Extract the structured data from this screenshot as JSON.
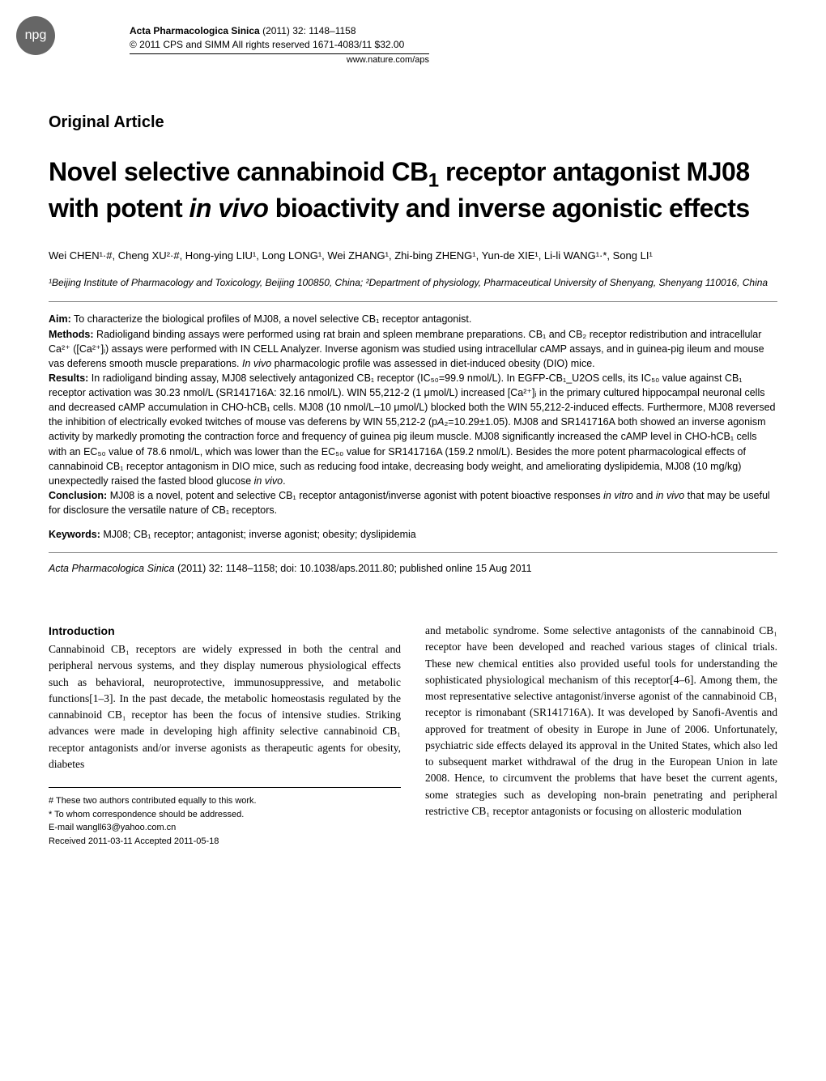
{
  "badge": "npg",
  "header": {
    "journal": "Acta Pharmacologica Sinica",
    "details": "(2011) 32: 1148–1158",
    "copyright": "© 2011 CPS and SIMM   All rights reserved 1671-4083/11  $32.00",
    "website": "www.nature.com/aps"
  },
  "article_type": "Original Article",
  "title_parts": {
    "p1": "Novel selective cannabinoid CB",
    "sub1": "1",
    "p2": " receptor antagonist MJ08 with potent ",
    "italic": "in vivo",
    "p3": " bioactivity and inverse agonistic effects"
  },
  "authors": "Wei CHEN¹·#, Cheng XU²·#, Hong-ying LIU¹, Long LONG¹, Wei ZHANG¹, Zhi-bing ZHENG¹, Yun-de XIE¹, Li-li WANG¹·*, Song LI¹",
  "affiliations": "¹Beijing Institute of Pharmacology and Toxicology, Beijing 100850, China; ²Department of physiology, Pharmaceutical University of Shenyang, Shenyang 110016, China",
  "abstract": {
    "aim_label": "Aim:",
    "aim_text": " To characterize the biological profiles of MJ08, a novel selective CB₁ receptor antagonist.",
    "methods_label": "Methods:",
    "methods_text": " Radioligand binding assays were performed using rat brain and spleen membrane preparations.  CB₁ and CB₂ receptor redistribution and intracellular Ca²⁺ ([Ca²⁺]ᵢ) assays were performed with IN CELL Analyzer.  Inverse agonism was studied using intracellular cAMP assays, and in guinea-pig ileum and mouse vas deferens smooth muscle preparations.  ",
    "methods_italic": "In vivo",
    "methods_text2": " pharmacologic profile was assessed in diet-induced obesity (DIO) mice.",
    "results_label": "Results:",
    "results_text": " In radioligand binding assay, MJ08 selectively antagonized CB₁ receptor (IC₅₀=99.9 nmol/L).  In EGFP-CB₁_U2OS cells, its IC₅₀ value against CB₁ receptor activation was 30.23 nmol/L (SR141716A: 32.16 nmol/L).  WIN 55,212-2 (1 μmol/L) increased [Ca²⁺]ᵢ in the primary cultured hippocampal neuronal cells and decreased cAMP accumulation in CHO-hCB₁ cells.  MJ08 (10 nmol/L–10 μmol/L) blocked both the WIN 55,212-2-induced effects.  Furthermore, MJ08 reversed the inhibition of electrically evoked twitches of mouse vas deferens by WIN 55,212-2 (p",
    "results_italic1": "A",
    "results_text2": "₂=10.29±1.05).  MJ08 and SR141716A both showed an inverse agonism activity by markedly promoting the contraction force and frequency of guinea pig ileum muscle.  MJ08 significantly increased the cAMP level in CHO-hCB₁ cells with an EC₅₀ value of 78.6 nmol/L, which was lower than the EC₅₀ value for SR141716A (159.2 nmol/L).  Besides the more potent pharmacological effects of cannabinoid CB₁ receptor antagonism in DIO mice, such as reducing food intake, decreasing body weight, and ameliorating dyslipidemia, MJ08 (10 mg/kg) unexpectedly raised the fasted blood glucose ",
    "results_italic2": "in vivo",
    "results_text3": ".",
    "conclusion_label": "Conclusion:",
    "conclusion_text": " MJ08 is a novel, potent and selective CB₁ receptor antagonist/inverse agonist with potent bioactive responses ",
    "conclusion_italic1": "in vitro",
    "conclusion_text2": " and ",
    "conclusion_italic2": "in vivo",
    "conclusion_text3": " that may be useful for disclosure the versatile nature of CB₁ receptors."
  },
  "keywords": {
    "label": "Keywords:",
    "text": " MJ08; CB₁ receptor; antagonist; inverse agonist; obesity; dyslipidemia"
  },
  "citation": {
    "journal": "Acta Pharmacologica Sinica",
    "text": " (2011) 32: 1148–1158; doi: 10.1038/aps.2011.80; published online 15 Aug 2011"
  },
  "intro_heading": "Introduction",
  "intro_col1": "Cannabinoid CB₁ receptors are widely expressed in both the central and peripheral nervous systems, and they display numerous physiological effects such as behavioral, neuroprotective, immunosuppressive, and metabolic functions[1–3]. In the past decade, the metabolic homeostasis regulated by the cannabinoid CB₁ receptor has been the focus of intensive studies.  Striking advances were made in developing high affinity selective cannabinoid CB₁ receptor antagonists and/or inverse agonists as therapeutic agents for obesity, diabetes",
  "intro_col2": "and metabolic syndrome.  Some selective antagonists of the cannabinoid CB₁ receptor have been developed and reached various stages of clinical trials.  These new chemical entities also provided useful tools for understanding the sophisticated physiological mechanism of this receptor[4–6].  Among them, the most representative selective antagonist/inverse agonist of the cannabinoid CB₁ receptor is rimonabant (SR141716A).  It was developed by Sanofi-Aventis and approved for treatment of obesity in Europe in June of 2006.  Unfortunately, psychiatric side effects delayed its approval in the United States, which also led to subsequent market withdrawal of the drug in the European Union in late 2008.  Hence, to circumvent the problems that have beset the current agents, some strategies such as developing non-brain penetrating and peripheral restrictive CB₁ receptor antagonists or focusing on allosteric modulation",
  "footnotes": {
    "line1": "# These two authors contributed equally to this work.",
    "line2": "* To whom correspondence should be addressed.",
    "line3": "E-mail wangll63@yahoo.com.cn",
    "line4": "Received 2011-03-11    Accepted 2011-05-18"
  }
}
